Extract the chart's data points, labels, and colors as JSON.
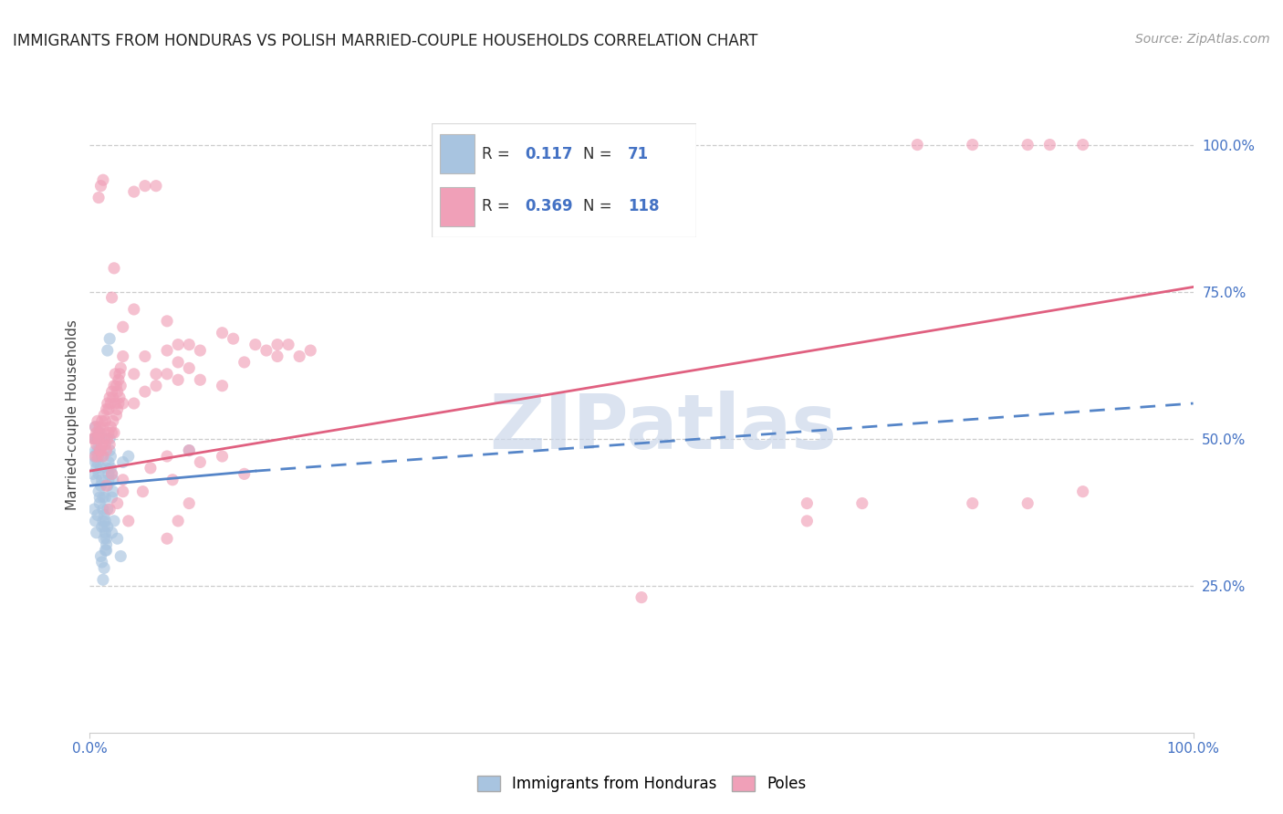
{
  "title": "IMMIGRANTS FROM HONDURAS VS POLISH MARRIED-COUPLE HOUSEHOLDS CORRELATION CHART",
  "source": "Source: ZipAtlas.com",
  "ylabel": "Married-couple Households",
  "legend_label1": "Immigrants from Honduras",
  "legend_label2": "Poles",
  "color_blue": "#a8c4e0",
  "color_pink": "#f0a0b8",
  "line_blue": "#5585c8",
  "line_pink": "#e06080",
  "watermark": "ZIPatlas",
  "blue_dots": [
    [
      0.003,
      0.44
    ],
    [
      0.004,
      0.47
    ],
    [
      0.004,
      0.5
    ],
    [
      0.005,
      0.48
    ],
    [
      0.005,
      0.46
    ],
    [
      0.005,
      0.52
    ],
    [
      0.006,
      0.5
    ],
    [
      0.006,
      0.45
    ],
    [
      0.006,
      0.43
    ],
    [
      0.007,
      0.5
    ],
    [
      0.007,
      0.48
    ],
    [
      0.007,
      0.46
    ],
    [
      0.008,
      0.5
    ],
    [
      0.008,
      0.47
    ],
    [
      0.008,
      0.44
    ],
    [
      0.009,
      0.51
    ],
    [
      0.009,
      0.48
    ],
    [
      0.009,
      0.4
    ],
    [
      0.01,
      0.42
    ],
    [
      0.01,
      0.45
    ],
    [
      0.01,
      0.5
    ],
    [
      0.011,
      0.43
    ],
    [
      0.011,
      0.47
    ],
    [
      0.011,
      0.35
    ],
    [
      0.012,
      0.38
    ],
    [
      0.012,
      0.36
    ],
    [
      0.012,
      0.4
    ],
    [
      0.013,
      0.33
    ],
    [
      0.013,
      0.37
    ],
    [
      0.013,
      0.35
    ],
    [
      0.014,
      0.36
    ],
    [
      0.014,
      0.34
    ],
    [
      0.014,
      0.4
    ],
    [
      0.015,
      0.32
    ],
    [
      0.015,
      0.31
    ],
    [
      0.015,
      0.33
    ],
    [
      0.016,
      0.35
    ],
    [
      0.016,
      0.38
    ],
    [
      0.016,
      0.42
    ],
    [
      0.017,
      0.44
    ],
    [
      0.017,
      0.46
    ],
    [
      0.017,
      0.43
    ],
    [
      0.018,
      0.5
    ],
    [
      0.018,
      0.48
    ],
    [
      0.019,
      0.45
    ],
    [
      0.019,
      0.47
    ],
    [
      0.02,
      0.44
    ],
    [
      0.02,
      0.4
    ],
    [
      0.021,
      0.43
    ],
    [
      0.021,
      0.41
    ],
    [
      0.004,
      0.38
    ],
    [
      0.005,
      0.36
    ],
    [
      0.006,
      0.34
    ],
    [
      0.007,
      0.37
    ],
    [
      0.008,
      0.41
    ],
    [
      0.009,
      0.39
    ],
    [
      0.01,
      0.3
    ],
    [
      0.011,
      0.29
    ],
    [
      0.012,
      0.26
    ],
    [
      0.013,
      0.28
    ],
    [
      0.014,
      0.31
    ],
    [
      0.015,
      0.45
    ],
    [
      0.016,
      0.65
    ],
    [
      0.018,
      0.67
    ],
    [
      0.03,
      0.46
    ],
    [
      0.035,
      0.47
    ],
    [
      0.09,
      0.48
    ],
    [
      0.02,
      0.34
    ],
    [
      0.022,
      0.36
    ],
    [
      0.025,
      0.33
    ],
    [
      0.028,
      0.3
    ]
  ],
  "pink_dots": [
    [
      0.003,
      0.5
    ],
    [
      0.004,
      0.5
    ],
    [
      0.005,
      0.52
    ],
    [
      0.005,
      0.47
    ],
    [
      0.006,
      0.51
    ],
    [
      0.006,
      0.49
    ],
    [
      0.007,
      0.53
    ],
    [
      0.007,
      0.47
    ],
    [
      0.008,
      0.51
    ],
    [
      0.008,
      0.5
    ],
    [
      0.009,
      0.52
    ],
    [
      0.009,
      0.48
    ],
    [
      0.01,
      0.51
    ],
    [
      0.01,
      0.48
    ],
    [
      0.011,
      0.53
    ],
    [
      0.011,
      0.49
    ],
    [
      0.012,
      0.52
    ],
    [
      0.012,
      0.47
    ],
    [
      0.013,
      0.54
    ],
    [
      0.013,
      0.5
    ],
    [
      0.014,
      0.53
    ],
    [
      0.014,
      0.49
    ],
    [
      0.015,
      0.55
    ],
    [
      0.015,
      0.48
    ],
    [
      0.016,
      0.56
    ],
    [
      0.016,
      0.5
    ],
    [
      0.017,
      0.55
    ],
    [
      0.017,
      0.51
    ],
    [
      0.018,
      0.57
    ],
    [
      0.018,
      0.49
    ],
    [
      0.019,
      0.56
    ],
    [
      0.019,
      0.52
    ],
    [
      0.02,
      0.58
    ],
    [
      0.02,
      0.51
    ],
    [
      0.021,
      0.57
    ],
    [
      0.021,
      0.53
    ],
    [
      0.022,
      0.59
    ],
    [
      0.022,
      0.51
    ],
    [
      0.023,
      0.56
    ],
    [
      0.023,
      0.61
    ],
    [
      0.024,
      0.59
    ],
    [
      0.024,
      0.54
    ],
    [
      0.025,
      0.58
    ],
    [
      0.025,
      0.55
    ],
    [
      0.026,
      0.6
    ],
    [
      0.026,
      0.56
    ],
    [
      0.027,
      0.61
    ],
    [
      0.027,
      0.57
    ],
    [
      0.028,
      0.62
    ],
    [
      0.028,
      0.59
    ],
    [
      0.03,
      0.56
    ],
    [
      0.03,
      0.43
    ],
    [
      0.03,
      0.64
    ],
    [
      0.04,
      0.56
    ],
    [
      0.04,
      0.61
    ],
    [
      0.05,
      0.58
    ],
    [
      0.05,
      0.64
    ],
    [
      0.06,
      0.61
    ],
    [
      0.06,
      0.59
    ],
    [
      0.07,
      0.65
    ],
    [
      0.07,
      0.61
    ],
    [
      0.08,
      0.6
    ],
    [
      0.08,
      0.63
    ],
    [
      0.09,
      0.66
    ],
    [
      0.09,
      0.62
    ],
    [
      0.1,
      0.65
    ],
    [
      0.1,
      0.6
    ],
    [
      0.12,
      0.68
    ],
    [
      0.12,
      0.59
    ],
    [
      0.13,
      0.67
    ],
    [
      0.14,
      0.63
    ],
    [
      0.15,
      0.66
    ],
    [
      0.16,
      0.65
    ],
    [
      0.17,
      0.64
    ],
    [
      0.17,
      0.66
    ],
    [
      0.18,
      0.66
    ],
    [
      0.19,
      0.64
    ],
    [
      0.2,
      0.65
    ],
    [
      0.008,
      0.91
    ],
    [
      0.01,
      0.93
    ],
    [
      0.012,
      0.94
    ],
    [
      0.04,
      0.92
    ],
    [
      0.05,
      0.93
    ],
    [
      0.06,
      0.93
    ],
    [
      0.07,
      0.7
    ],
    [
      0.08,
      0.66
    ],
    [
      0.02,
      0.74
    ],
    [
      0.022,
      0.79
    ],
    [
      0.03,
      0.69
    ],
    [
      0.04,
      0.72
    ],
    [
      0.015,
      0.42
    ],
    [
      0.018,
      0.38
    ],
    [
      0.02,
      0.44
    ],
    [
      0.025,
      0.39
    ],
    [
      0.03,
      0.41
    ],
    [
      0.035,
      0.36
    ],
    [
      0.048,
      0.41
    ],
    [
      0.055,
      0.45
    ],
    [
      0.07,
      0.47
    ],
    [
      0.075,
      0.43
    ],
    [
      0.09,
      0.48
    ],
    [
      0.1,
      0.46
    ],
    [
      0.12,
      0.47
    ],
    [
      0.14,
      0.44
    ],
    [
      0.07,
      0.33
    ],
    [
      0.08,
      0.36
    ],
    [
      0.09,
      0.39
    ],
    [
      0.5,
      0.23
    ],
    [
      0.65,
      0.39
    ],
    [
      0.65,
      0.36
    ],
    [
      0.7,
      0.39
    ],
    [
      0.8,
      0.39
    ],
    [
      0.85,
      0.39
    ],
    [
      0.9,
      0.41
    ],
    [
      0.85,
      1.0
    ],
    [
      0.87,
      1.0
    ],
    [
      0.9,
      1.0
    ],
    [
      0.75,
      1.0
    ],
    [
      0.8,
      1.0
    ]
  ],
  "blue_line_solid": {
    "x0": 0.0,
    "y0": 0.42,
    "x1": 0.15,
    "y1": 0.445
  },
  "blue_line_dashed": {
    "x0": 0.15,
    "y0": 0.445,
    "x1": 1.0,
    "y1": 0.56
  },
  "pink_line": {
    "x0": 0.0,
    "y0": 0.445,
    "x1": 1.0,
    "y1": 0.758
  },
  "xlim": [
    0.0,
    1.0
  ],
  "ylim": [
    0.0,
    1.08
  ],
  "grid_yticks": [
    0.25,
    0.5,
    0.75,
    1.0
  ],
  "grid_color": "#cccccc",
  "bg_color": "#ffffff",
  "title_fontsize": 12,
  "source_fontsize": 10,
  "axis_label_fontsize": 11,
  "tick_fontsize": 11,
  "watermark_color": "#ccd8ea",
  "watermark_fontsize": 60,
  "dot_size": 90,
  "dot_alpha": 0.65
}
